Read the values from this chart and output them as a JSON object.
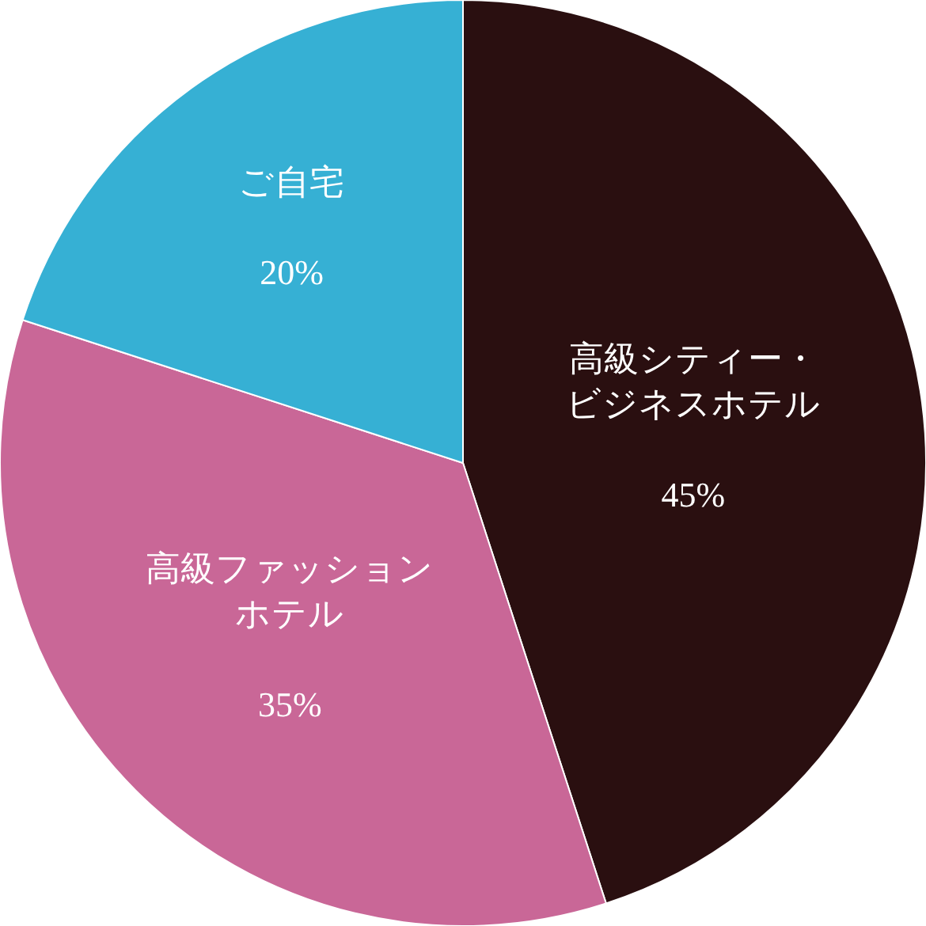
{
  "chart_data": {
    "type": "pie",
    "categories": [
      "高級シティー・ビジネスホテル",
      "高級ファッションホテル",
      "ご自宅"
    ],
    "values": [
      45,
      35,
      20
    ],
    "value_labels": [
      "45%",
      "35%",
      "20%"
    ],
    "colors": [
      "#2a0f10",
      "#c96797",
      "#36b0d4"
    ],
    "legend": false
  }
}
